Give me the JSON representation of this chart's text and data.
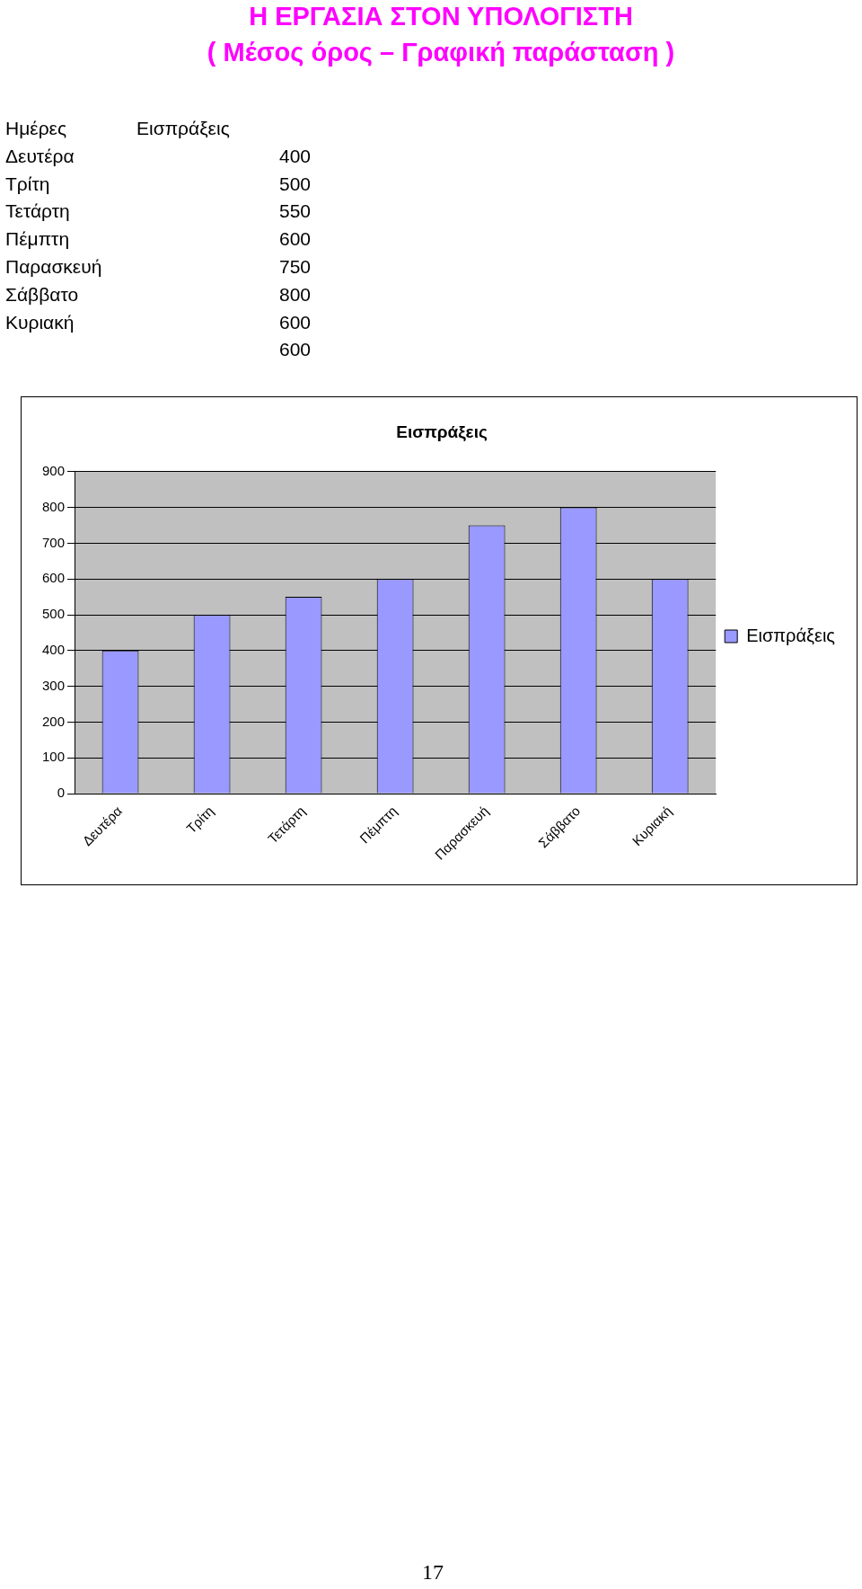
{
  "chart_data": {
    "type": "bar",
    "title": "Εισπράξεις",
    "categories": [
      "Δευτέρα",
      "Τρίτη",
      "Τετάρτη",
      "Πέμπτη",
      "Παρασκευή",
      "Σάββατο",
      "Κυριακή"
    ],
    "series": [
      {
        "name": "Εισπράξεις",
        "color": "#9999ff",
        "values": [
          400,
          500,
          550,
          600,
          750,
          800,
          600
        ]
      }
    ],
    "ylim": [
      0,
      900
    ],
    "yticks": [
      0,
      100,
      200,
      300,
      400,
      500,
      600,
      700,
      800,
      900
    ],
    "grid": "y",
    "legend": "right",
    "annotations": [
      "Η ΕΡΓΑΣΙΑ ΣΤΟΝ ΥΠΟΛΟΓΙΣΤΗ",
      "( Μέσος όρος – Γραφική παράσταση )",
      "Ημέρες",
      "Εισπράξεις",
      "Δευτέρα",
      "400",
      "Τρίτη",
      "500",
      "Τετάρτη",
      "550",
      "Πέμπτη",
      "600",
      "Παρασκευή",
      "750",
      "Σάββατο",
      "800",
      "Κυριακή",
      "600",
      "600",
      "17"
    ]
  }
}
